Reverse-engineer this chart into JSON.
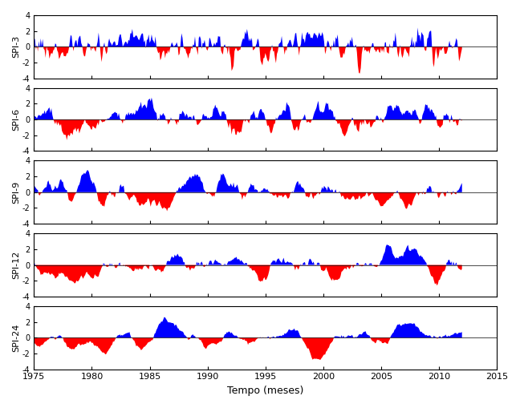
{
  "xlabel": "Tempo (meses)",
  "ylabel_labels": [
    "SPI-3",
    "SPI-6",
    "SPI-9",
    "SPI-12",
    "SPI-24"
  ],
  "spi_scales": [
    3,
    6,
    9,
    12,
    24
  ],
  "t_start": 1975.0,
  "t_end": 2012.0,
  "dt": 0.08333333,
  "xlim": [
    1975,
    2015
  ],
  "ylim": [
    -4,
    4
  ],
  "yticks": [
    -4,
    -2,
    0,
    2,
    4
  ],
  "xticks": [
    1975,
    1980,
    1985,
    1990,
    1995,
    2000,
    2005,
    2010,
    2015
  ],
  "color_positive": "#0000FF",
  "color_negative": "#FF0000",
  "background_color": "#FFFFFF",
  "figsize": [
    6.48,
    5.09
  ],
  "dpi": 100
}
